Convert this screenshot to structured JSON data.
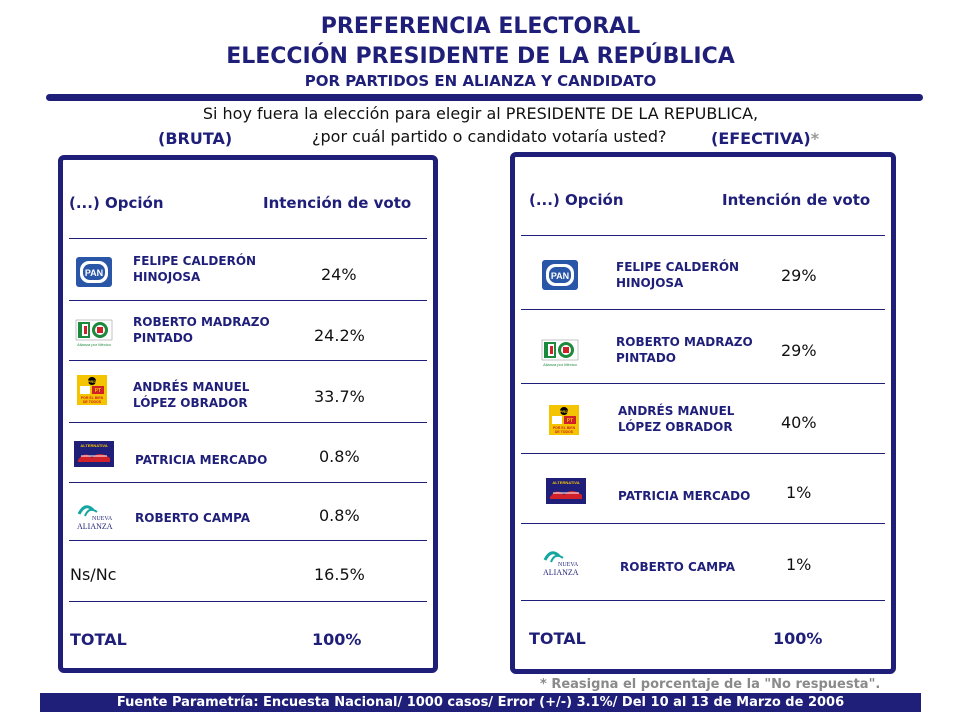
{
  "header": {
    "title1": "PREFERENCIA ELECTORAL",
    "title2": "ELECCIÓN PRESIDENTE DE LA REPÚBLICA",
    "title3": "POR PARTIDOS EN ALIANZA Y CANDIDATO",
    "question_line1": "Si hoy fuera la elección para elegir al PRESIDENTE DE LA REPUBLICA,",
    "question_line2": "¿por cuál partido o candidato votaría usted?",
    "label_bruta": "(BRUTA)",
    "label_efectiva": "(EFECTIVA)",
    "label_efectiva_asterisk": "*"
  },
  "columns": {
    "option": "(...) Opción",
    "intention": "Intención de voto"
  },
  "bruta": {
    "rows": [
      {
        "logo": "pan-logo",
        "name1": "FELIPE CALDERÓN",
        "name2": "HINOJOSA",
        "value": "24%"
      },
      {
        "logo": "alianza-por-mexico-logo",
        "name1": "ROBERTO MADRAZO",
        "name2": "PINTADO",
        "value": "24.2%"
      },
      {
        "logo": "por-el-bien-de-todos-logo",
        "name1": "ANDRÉS MANUEL",
        "name2": "LÓPEZ OBRADOR",
        "value": "33.7%"
      },
      {
        "logo": "alternativa-logo",
        "name1": "PATRICIA MERCADO",
        "name2": "",
        "value": "0.8%"
      },
      {
        "logo": "nueva-alianza-logo",
        "name1": "ROBERTO CAMPA",
        "name2": "",
        "value": "0.8%"
      }
    ],
    "nsnc_label": "Ns/Nc",
    "nsnc_value": "16.5%",
    "total_label": "TOTAL",
    "total_value": "100%"
  },
  "efectiva": {
    "rows": [
      {
        "logo": "pan-logo",
        "name1": "FELIPE CALDERÓN",
        "name2": "HINOJOSA",
        "value": "29%"
      },
      {
        "logo": "alianza-por-mexico-logo",
        "name1": "ROBERTO MADRAZO",
        "name2": "PINTADO",
        "value": "29%"
      },
      {
        "logo": "por-el-bien-de-todos-logo",
        "name1": "ANDRÉS MANUEL",
        "name2": "LÓPEZ OBRADOR",
        "value": "40%"
      },
      {
        "logo": "alternativa-logo",
        "name1": "PATRICIA MERCADO",
        "name2": "",
        "value": "1%"
      },
      {
        "logo": "nueva-alianza-logo",
        "name1": "ROBERTO CAMPA",
        "name2": "",
        "value": "1%"
      }
    ],
    "total_label": "TOTAL",
    "total_value": "100%"
  },
  "logo_text": {
    "pan": "PAN",
    "alianza_caption": "Alianza por México",
    "prd": "PRD",
    "pt": "PT",
    "pebt_line1": "POR EL BIEN",
    "pebt_line2": "DE TODOS",
    "alternativa": "ALTERNATIVA",
    "nueva": "NUEVA",
    "alianza": "ALIANZA"
  },
  "note": "* Reasigna el porcentaje de la \"No respuesta\".",
  "footer": "Fuente Parametría: Encuesta Nacional/ 1000 casos/ Error (+/-) 3.1%/ Del 10 al 13 de Marzo  de 2006",
  "colors": {
    "navy": "#1f1f7a",
    "pan_blue": "#2a56a8",
    "pri_green": "#1c8a3c",
    "pri_red": "#d0202a",
    "prd_yellow": "#f4c400",
    "gray_note": "#8a8a8a"
  }
}
